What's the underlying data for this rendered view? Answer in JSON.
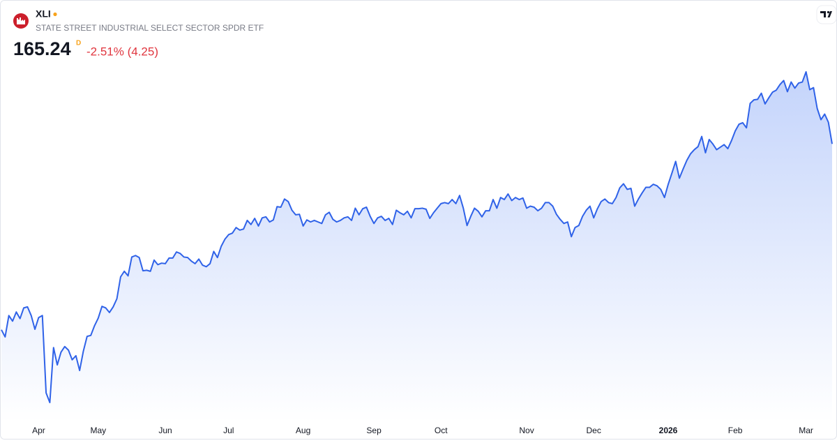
{
  "header": {
    "symbol": "XLI",
    "name": "STATE STREET INDUSTRIAL SELECT SECTOR SPDR ETF",
    "price": "165.24",
    "delay_flag": "D",
    "change": "-2.51% (4.25)"
  },
  "chart_data": {
    "type": "area",
    "color": "#2f62e8",
    "categories": [
      null,
      null,
      null,
      null,
      null,
      null,
      null,
      null,
      null,
      null,
      "Apr",
      null,
      null,
      null,
      null,
      null,
      null,
      null,
      null,
      null,
      null,
      null,
      null,
      null,
      null,
      null,
      "May",
      null,
      null,
      null,
      null,
      null,
      null,
      null,
      null,
      null,
      null,
      null,
      null,
      null,
      null,
      null,
      null,
      null,
      "Jun",
      null,
      null,
      null,
      null,
      null,
      null,
      null,
      null,
      null,
      null,
      null,
      null,
      null,
      null,
      null,
      null,
      "Jul",
      null,
      null,
      null,
      null,
      null,
      null,
      null,
      null,
      null,
      null,
      null,
      null,
      null,
      null,
      null,
      null,
      null,
      null,
      null,
      "Aug",
      null,
      null,
      null,
      null,
      null,
      null,
      null,
      null,
      null,
      null,
      null,
      null,
      null,
      null,
      null,
      null,
      null,
      null,
      "Sep",
      null,
      null,
      null,
      null,
      null,
      null,
      null,
      null,
      null,
      null,
      null,
      null,
      null,
      null,
      null,
      null,
      null,
      "Oct",
      null,
      null,
      null,
      null,
      null,
      null,
      null,
      null,
      null,
      null,
      null,
      null,
      null,
      null,
      null,
      null,
      null,
      null,
      null,
      null,
      null,
      null,
      "Nov",
      null,
      null,
      null,
      null,
      null,
      null,
      null,
      null,
      null,
      null,
      null,
      null,
      null,
      null,
      null,
      null,
      null,
      "Dec",
      null,
      null,
      null,
      null,
      null,
      null,
      null,
      null,
      null,
      null,
      null,
      null,
      null,
      null,
      null,
      null,
      null,
      null,
      null,
      "2026",
      null,
      null,
      null,
      null,
      null,
      null,
      null,
      null,
      null,
      null,
      null,
      null,
      null,
      null,
      null,
      null,
      null,
      "Feb",
      null,
      null,
      null,
      null,
      null,
      null,
      null,
      null,
      null,
      null,
      null,
      null,
      null,
      null,
      null,
      null,
      null,
      null,
      "Mar",
      null,
      null,
      null,
      null,
      null,
      null,
      null
    ],
    "values": [
      128.7,
      127.3,
      131.5,
      130.4,
      132.2,
      130.9,
      133.0,
      133.2,
      131.5,
      128.8,
      131.1,
      131.5,
      116.3,
      114.4,
      125.2,
      121.8,
      124.3,
      125.4,
      124.7,
      122.8,
      123.6,
      120.7,
      124.5,
      127.4,
      127.6,
      129.5,
      131.0,
      133.3,
      133.0,
      132.1,
      133.2,
      134.8,
      139.1,
      140.2,
      139.3,
      143.0,
      143.3,
      142.9,
      140.3,
      140.4,
      140.2,
      142.4,
      141.5,
      141.8,
      141.7,
      142.8,
      142.8,
      144.0,
      143.7,
      143.0,
      142.9,
      142.2,
      141.7,
      142.6,
      141.4,
      141.1,
      141.7,
      144.1,
      142.9,
      145.1,
      146.5,
      147.4,
      147.7,
      148.8,
      148.3,
      148.5,
      150.2,
      149.4,
      150.6,
      149.1,
      150.7,
      150.9,
      149.9,
      150.3,
      152.9,
      152.8,
      154.4,
      153.9,
      152.2,
      151.3,
      151.4,
      149.1,
      150.3,
      149.9,
      150.2,
      149.9,
      149.6,
      151.3,
      151.8,
      150.4,
      149.9,
      150.2,
      150.7,
      150.9,
      150.2,
      152.6,
      151.3,
      152.5,
      152.8,
      151.0,
      149.6,
      150.7,
      151.0,
      150.2,
      150.6,
      149.4,
      152.2,
      151.7,
      151.3,
      152.0,
      150.7,
      152.5,
      152.5,
      152.6,
      152.4,
      150.6,
      151.7,
      152.6,
      153.5,
      153.7,
      153.5,
      154.3,
      153.5,
      155.1,
      152.6,
      149.2,
      151.0,
      152.6,
      152.0,
      150.9,
      152.1,
      152.1,
      154.3,
      152.6,
      154.7,
      154.3,
      155.4,
      154.1,
      154.7,
      154.3,
      154.6,
      152.6,
      153.0,
      152.8,
      152.1,
      152.6,
      153.7,
      153.7,
      153.0,
      151.4,
      150.4,
      149.6,
      149.9,
      147.0,
      148.8,
      149.2,
      151.0,
      152.2,
      153.0,
      150.7,
      152.5,
      153.9,
      154.4,
      153.7,
      153.5,
      154.7,
      156.6,
      157.4,
      156.3,
      156.5,
      153.0,
      154.4,
      155.6,
      156.7,
      156.7,
      157.3,
      157.0,
      156.3,
      154.7,
      157.3,
      159.5,
      161.8,
      158.5,
      160.3,
      162.0,
      163.3,
      164.1,
      164.7,
      166.7,
      163.5,
      166.1,
      165.2,
      164.1,
      164.6,
      165.1,
      164.3,
      165.9,
      167.8,
      169.1,
      169.4,
      168.4,
      173.2,
      173.9,
      174.0,
      175.2,
      173.1,
      174.3,
      175.4,
      175.8,
      176.9,
      177.7,
      175.5,
      177.4,
      176.2,
      177.2,
      177.4,
      179.4,
      175.9,
      176.3,
      172.2,
      170.0,
      171.1,
      169.49,
      165.24
    ]
  }
}
